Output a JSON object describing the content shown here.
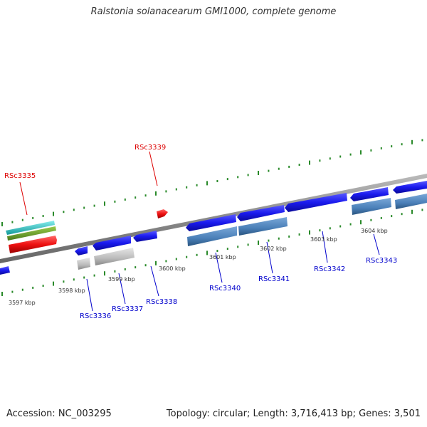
{
  "title": "Ralstonia solanacearum GMI1000, complete genome",
  "accession": "Accession: NC_003295",
  "summary": "Topology: circular; Length: 3,716,413 bp; Genes: 3,501",
  "colors": {
    "forward_label": "#dd0000",
    "reverse_label": "#0000cc",
    "backbone": "#888888",
    "gc_ticks": "#2a8a2a",
    "cds_blue": "#1a1aee",
    "cds_red": "#ee1111",
    "feature_steel": "#4a7fb8",
    "feature_gray": "#bbbbbb",
    "feature_cyan": "#22cccc",
    "feature_olive": "#6a9a2a"
  },
  "kbp_ticks": [
    "3597 kbp",
    "3598 kbp",
    "3599 kbp",
    "3600 kbp",
    "3601 kbp",
    "3602 kbp",
    "3603 kbp",
    "3604 kbp"
  ],
  "genes": [
    {
      "label": "RSc3335",
      "strand": "forward"
    },
    {
      "label": "RSc3339",
      "strand": "forward"
    },
    {
      "label": "RSc3336",
      "strand": "reverse"
    },
    {
      "label": "RSc3337",
      "strand": "reverse"
    },
    {
      "label": "RSc3338",
      "strand": "reverse"
    },
    {
      "label": "RSc3340",
      "strand": "reverse"
    },
    {
      "label": "RSc3341",
      "strand": "reverse"
    },
    {
      "label": "RSc3342",
      "strand": "reverse"
    },
    {
      "label": "RSc3343",
      "strand": "reverse"
    }
  ]
}
